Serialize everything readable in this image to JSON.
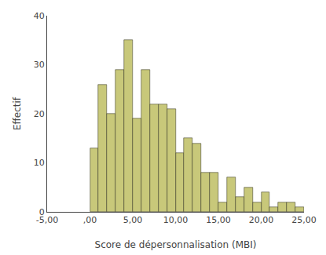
{
  "chart_data": {
    "type": "histogram",
    "xlabel": "Score de dépersonnalisation (MBI)",
    "ylabel": "Effectif",
    "bins": [
      0,
      1,
      2,
      3,
      4,
      5,
      6,
      7,
      8,
      9,
      10,
      11,
      12,
      13,
      14,
      15,
      16,
      17,
      18,
      19,
      20,
      21,
      22,
      23,
      24,
      25
    ],
    "values": [
      13,
      26,
      20,
      29,
      35,
      19,
      29,
      22,
      22,
      21,
      12,
      15,
      14,
      8,
      8,
      2,
      7,
      3,
      5,
      2,
      4,
      1,
      2,
      2,
      1
    ],
    "color": "#c8c87a",
    "xlim": [
      -5,
      25
    ],
    "xticks": [
      {
        "value": -5,
        "label": "-5,00"
      },
      {
        "value": 0,
        "label": ",00"
      },
      {
        "value": 5,
        "label": "5,00"
      },
      {
        "value": 10,
        "label": "10,00"
      },
      {
        "value": 15,
        "label": "15,00"
      },
      {
        "value": 20,
        "label": "20,00"
      },
      {
        "value": 25,
        "label": "25,00"
      }
    ],
    "ylim": [
      0,
      40
    ],
    "yticks": [
      0,
      10,
      20,
      30,
      40
    ],
    "grid": false
  }
}
